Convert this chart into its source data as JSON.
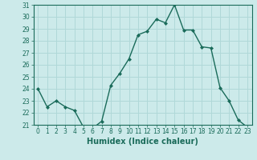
{
  "x": [
    0,
    1,
    2,
    3,
    4,
    5,
    6,
    7,
    8,
    9,
    10,
    11,
    12,
    13,
    14,
    15,
    16,
    17,
    18,
    19,
    20,
    21,
    22,
    23
  ],
  "y": [
    24.0,
    22.5,
    23.0,
    22.5,
    22.2,
    20.8,
    20.7,
    21.3,
    24.3,
    25.3,
    26.5,
    28.5,
    28.8,
    29.8,
    29.5,
    31.0,
    28.9,
    28.9,
    27.5,
    27.4,
    24.1,
    23.0,
    21.4,
    20.8
  ],
  "line_color": "#1a6b5a",
  "marker": "D",
  "marker_size": 2.0,
  "bg_color": "#cceaea",
  "grid_color": "#b0d8d8",
  "xlabel": "Humidex (Indice chaleur)",
  "ylim": [
    21,
    31
  ],
  "xlim_min": -0.5,
  "xlim_max": 23.5,
  "yticks": [
    21,
    22,
    23,
    24,
    25,
    26,
    27,
    28,
    29,
    30,
    31
  ],
  "xticks": [
    0,
    1,
    2,
    3,
    4,
    5,
    6,
    7,
    8,
    9,
    10,
    11,
    12,
    13,
    14,
    15,
    16,
    17,
    18,
    19,
    20,
    21,
    22,
    23
  ],
  "tick_color": "#1a6b5a",
  "label_fontsize": 5.5,
  "xlabel_fontsize": 7.0,
  "linewidth": 1.0
}
